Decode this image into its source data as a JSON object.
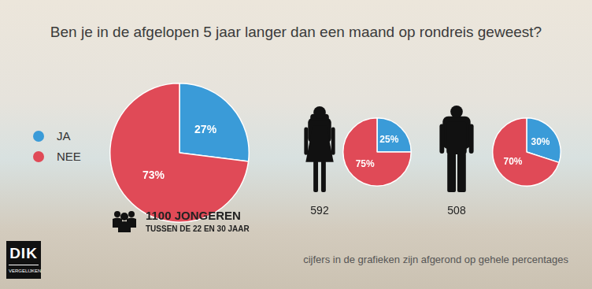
{
  "title": "Ben je in de afgelopen 5 jaar langer dan een maand op rondreis geweest?",
  "note": "cijfers in de grafieken zijn afgerond op gehele percentages",
  "logo": {
    "text": "DIK",
    "subtext": "VERGELIJKEN"
  },
  "chart_data": [
    {
      "type": "pie",
      "title": "1100 JONGEREN",
      "subtitle": "TUSSEN DE 22 EN 30 JAAR",
      "categories": [
        "JA",
        "NEE"
      ],
      "values": [
        27,
        73
      ],
      "value_labels": [
        "27%",
        "73%"
      ],
      "colors": [
        "#3a9bd8",
        "#e04a57"
      ],
      "legend": "left",
      "data_labels": true
    },
    {
      "type": "pie",
      "title": "592",
      "categories": [
        "JA",
        "NEE"
      ],
      "values": [
        25,
        75
      ],
      "value_labels": [
        "25%",
        "75%"
      ],
      "colors": [
        "#3a9bd8",
        "#e04a57"
      ],
      "data_labels": true
    },
    {
      "type": "pie",
      "title": "508",
      "categories": [
        "JA",
        "NEE"
      ],
      "values": [
        30,
        70
      ],
      "value_labels": [
        "30%",
        "70%"
      ],
      "colors": [
        "#3a9bd8",
        "#e04a57"
      ],
      "data_labels": true
    }
  ]
}
